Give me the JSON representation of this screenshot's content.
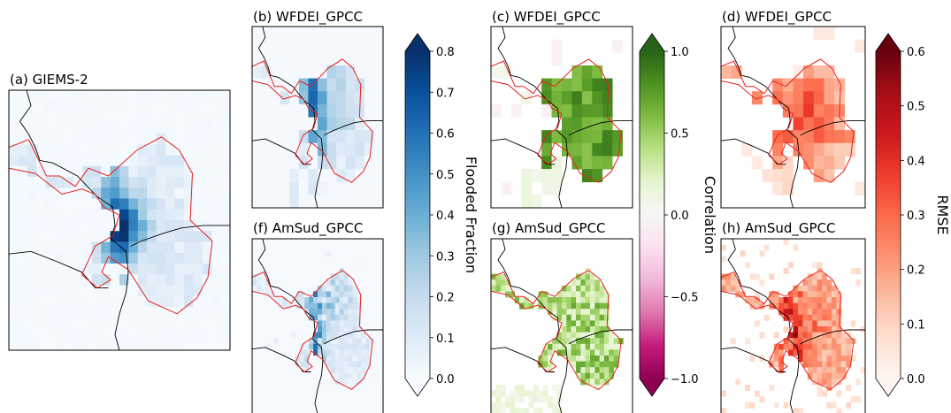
{
  "chart_data": {
    "type": "heatmap",
    "panels": [
      {
        "id": "a",
        "title": "(a) GIEMS-2",
        "colormap": "blues",
        "range": [
          0,
          0.8
        ],
        "res": 24,
        "seed": 11,
        "shape": "giems"
      },
      {
        "id": "b",
        "title": "(b) WFDEI_GPCC",
        "colormap": "blues",
        "range": [
          0,
          0.8
        ],
        "res": 14,
        "seed": 3,
        "shape": "ff_coarse"
      },
      {
        "id": "c",
        "title": "(c) WFDEI_GPCC",
        "colormap": "pig",
        "range": [
          -1,
          1
        ],
        "res": 14,
        "seed": 5,
        "shape": "corr_coarse"
      },
      {
        "id": "d",
        "title": "(d) WFDEI_GPCC",
        "colormap": "reds",
        "range": [
          0,
          0.6
        ],
        "res": 14,
        "seed": 7,
        "shape": "rmse_coarse"
      },
      {
        "id": "f",
        "title": "(f) AmSud_GPCC",
        "colormap": "blues",
        "range": [
          0,
          0.8
        ],
        "res": 30,
        "seed": 13,
        "shape": "ff_fine"
      },
      {
        "id": "g",
        "title": "(g) AmSud_GPCC",
        "colormap": "pig",
        "range": [
          -1,
          1
        ],
        "res": 30,
        "seed": 17,
        "shape": "corr_fine"
      },
      {
        "id": "h",
        "title": "(h) AmSud_GPCC",
        "colormap": "reds",
        "range": [
          0,
          0.6
        ],
        "res": 30,
        "seed": 19,
        "shape": "rmse_fine"
      }
    ],
    "colorbars": [
      {
        "id": "ff",
        "label": "Flooded Fraction",
        "colormap": "blues",
        "range": [
          0,
          0.8
        ],
        "extend": "both",
        "ticks": [
          {
            "v": 0.0,
            "t": "0.0"
          },
          {
            "v": 0.1,
            "t": "0.1"
          },
          {
            "v": 0.2,
            "t": "0.2"
          },
          {
            "v": 0.3,
            "t": "0.3"
          },
          {
            "v": 0.4,
            "t": "0.4"
          },
          {
            "v": 0.5,
            "t": "0.5"
          },
          {
            "v": 0.6,
            "t": "0.6"
          },
          {
            "v": 0.7,
            "t": "0.7"
          },
          {
            "v": 0.8,
            "t": "0.8"
          }
        ]
      },
      {
        "id": "corr",
        "label": "Correlation",
        "colormap": "pig",
        "range": [
          -1,
          1
        ],
        "extend": "both",
        "ticks": [
          {
            "v": -1.0,
            "t": "−1.0"
          },
          {
            "v": -0.5,
            "t": "−0.5"
          },
          {
            "v": 0.0,
            "t": "0.0"
          },
          {
            "v": 0.5,
            "t": "0.5"
          },
          {
            "v": 1.0,
            "t": "1.0"
          }
        ]
      },
      {
        "id": "rmse",
        "label": "RMSE",
        "colormap": "reds",
        "range": [
          0,
          0.6
        ],
        "extend": "both",
        "ticks": [
          {
            "v": 0.0,
            "t": "0.0"
          },
          {
            "v": 0.1,
            "t": "0.1"
          },
          {
            "v": 0.2,
            "t": "0.2"
          },
          {
            "v": 0.3,
            "t": "0.3"
          },
          {
            "v": 0.4,
            "t": "0.4"
          },
          {
            "v": 0.5,
            "t": "0.5"
          },
          {
            "v": 0.6,
            "t": "0.6"
          }
        ]
      }
    ],
    "colors": {
      "region_outline": "#e8201c",
      "coastline": "#000000"
    }
  }
}
